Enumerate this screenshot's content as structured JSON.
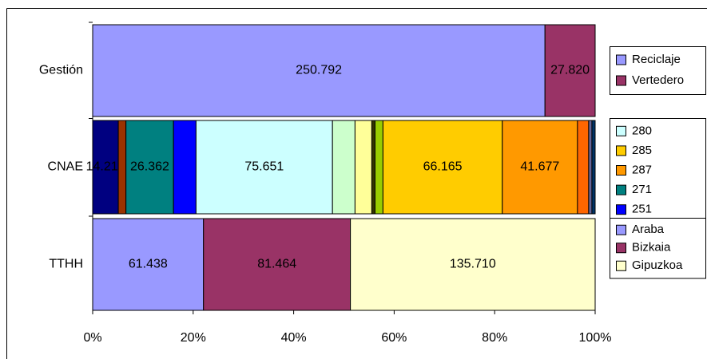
{
  "chart_data": {
    "type": "bar",
    "orientation": "horizontal",
    "stacked": "percent",
    "xlim": [
      0,
      100
    ],
    "xticks": [
      {
        "value": 0,
        "label": "0%"
      },
      {
        "value": 20,
        "label": "20%"
      },
      {
        "value": 40,
        "label": "40%"
      },
      {
        "value": 60,
        "label": "60%"
      },
      {
        "value": 80,
        "label": "80%"
      },
      {
        "value": 100,
        "label": "100%"
      }
    ],
    "rows": [
      {
        "category": "Gestión",
        "segments": [
          {
            "color": "#9999ff",
            "value": 250792,
            "value_label": "250.792"
          },
          {
            "color": "#993366",
            "value": 27820,
            "value_label": "27.820"
          }
        ],
        "legend": [
          {
            "name": "Reciclaje",
            "color": "#9999ff"
          },
          {
            "name": "Vertedero",
            "color": "#993366"
          }
        ]
      },
      {
        "category": "CNAE",
        "segments": [
          {
            "color": "#000080",
            "value": 14217,
            "value_label": "14.217"
          },
          {
            "color": "#993300",
            "value": 4240
          },
          {
            "color": "#008080",
            "value": 26362,
            "value_label": "26.362"
          },
          {
            "color": "#0000ff",
            "value": 12500
          },
          {
            "color": "#ccffff",
            "value": 75651,
            "value_label": "75.651"
          },
          {
            "color": "#ccffcc",
            "value": 12500
          },
          {
            "color": "#ffff99",
            "value": 9300
          },
          {
            "color": "#333300",
            "value": 1800
          },
          {
            "color": "#99cc00",
            "value": 4400
          },
          {
            "color": "#ffcc00",
            "value": 66165,
            "value_label": "66.165"
          },
          {
            "color": "#ff9900",
            "value": 41677,
            "value_label": "41.677"
          },
          {
            "color": "#ff6600",
            "value": 6200
          },
          {
            "color": "#666699",
            "value": 1800
          },
          {
            "color": "#003366",
            "value": 1800
          }
        ],
        "legend": [
          {
            "name": "280",
            "color": "#ccffff"
          },
          {
            "name": "285",
            "color": "#ffcc00"
          },
          {
            "name": "287",
            "color": "#ff9900"
          },
          {
            "name": "271",
            "color": "#008080"
          },
          {
            "name": "251",
            "color": "#0000ff"
          }
        ]
      },
      {
        "category": "TTHH",
        "segments": [
          {
            "color": "#9999ff",
            "value": 61438,
            "value_label": "61.438"
          },
          {
            "color": "#993366",
            "value": 81464,
            "value_label": "81.464"
          },
          {
            "color": "#ffffcc",
            "value": 135710,
            "value_label": "135.710"
          }
        ],
        "legend": [
          {
            "name": "Araba",
            "color": "#9999ff"
          },
          {
            "name": "Bizkaia",
            "color": "#993366"
          },
          {
            "name": "Gipuzkoa",
            "color": "#ffffcc"
          }
        ]
      }
    ]
  }
}
